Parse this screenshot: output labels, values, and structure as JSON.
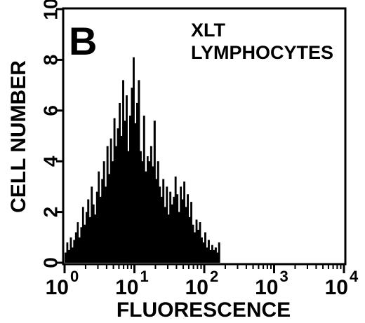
{
  "chart_data": {
    "type": "bar",
    "panel_label": "B",
    "annotation_lines": [
      "XLT",
      "LYMPHOCYTES"
    ],
    "xlabel": "FLUORESCENCE",
    "ylabel": "CELL NUMBER",
    "x_scale": "log",
    "xlim": [
      1,
      10000
    ],
    "ylim": [
      0,
      10
    ],
    "x_ticks": [
      {
        "value": 1,
        "base": "10",
        "exp": "0"
      },
      {
        "value": 10,
        "base": "10",
        "exp": "1"
      },
      {
        "value": 100,
        "base": "10",
        "exp": "2"
      },
      {
        "value": 1000,
        "base": "10",
        "exp": "3"
      },
      {
        "value": 10000,
        "base": "10",
        "exp": "4"
      }
    ],
    "y_ticks": [
      0,
      2,
      4,
      6,
      8,
      10
    ],
    "grid": false,
    "legend": "none",
    "color": "#000000",
    "x": [
      1.0,
      1.06,
      1.12,
      1.19,
      1.26,
      1.33,
      1.41,
      1.5,
      1.58,
      1.68,
      1.78,
      1.88,
      2.0,
      2.11,
      2.24,
      2.37,
      2.51,
      2.66,
      2.82,
      2.99,
      3.16,
      3.35,
      3.55,
      3.76,
      3.98,
      4.22,
      4.47,
      4.73,
      5.01,
      5.31,
      5.62,
      5.96,
      6.31,
      6.68,
      7.08,
      7.5,
      7.94,
      8.41,
      8.91,
      9.44,
      10.0,
      10.6,
      11.2,
      11.9,
      12.6,
      13.3,
      14.1,
      15.0,
      15.8,
      16.8,
      17.8,
      18.8,
      20.0,
      21.1,
      22.4,
      23.7,
      25.1,
      26.6,
      28.2,
      29.9,
      31.6,
      33.5,
      35.5,
      37.6,
      39.8,
      42.2,
      44.7,
      47.3,
      50.1,
      53.1,
      56.2,
      59.6,
      63.1,
      66.8,
      70.8,
      75.0,
      79.4,
      84.1,
      89.1,
      94.4,
      100,
      106,
      112,
      119,
      126,
      133,
      141,
      150,
      158
    ],
    "values": [
      0.4,
      0.8,
      0.5,
      1.0,
      0.6,
      0.9,
      1.2,
      1.6,
      1.0,
      1.4,
      2.2,
      1.5,
      2.0,
      2.5,
      1.8,
      3.0,
      2.3,
      1.9,
      2.8,
      3.6,
      2.6,
      3.3,
      4.0,
      3.0,
      4.6,
      3.5,
      4.9,
      4.0,
      5.7,
      4.6,
      5.3,
      6.3,
      5.0,
      7.2,
      5.6,
      6.6,
      4.4,
      5.8,
      6.9,
      8.1,
      5.5,
      6.3,
      7.2,
      4.4,
      4.0,
      5.8,
      3.6,
      4.2,
      4.0,
      4.6,
      3.8,
      5.6,
      3.3,
      4.0,
      3.0,
      2.6,
      3.3,
      2.2,
      3.0,
      1.9,
      2.8,
      2.3,
      2.6,
      3.4,
      2.7,
      2.0,
      3.0,
      2.5,
      3.2,
      2.2,
      2.7,
      1.8,
      2.4,
      1.5,
      1.2,
      1.7,
      1.3,
      1.6,
      1.0,
      0.8,
      1.2,
      0.6,
      0.9,
      0.5,
      0.7,
      0.5,
      0.6,
      0.4,
      0.8
    ]
  }
}
